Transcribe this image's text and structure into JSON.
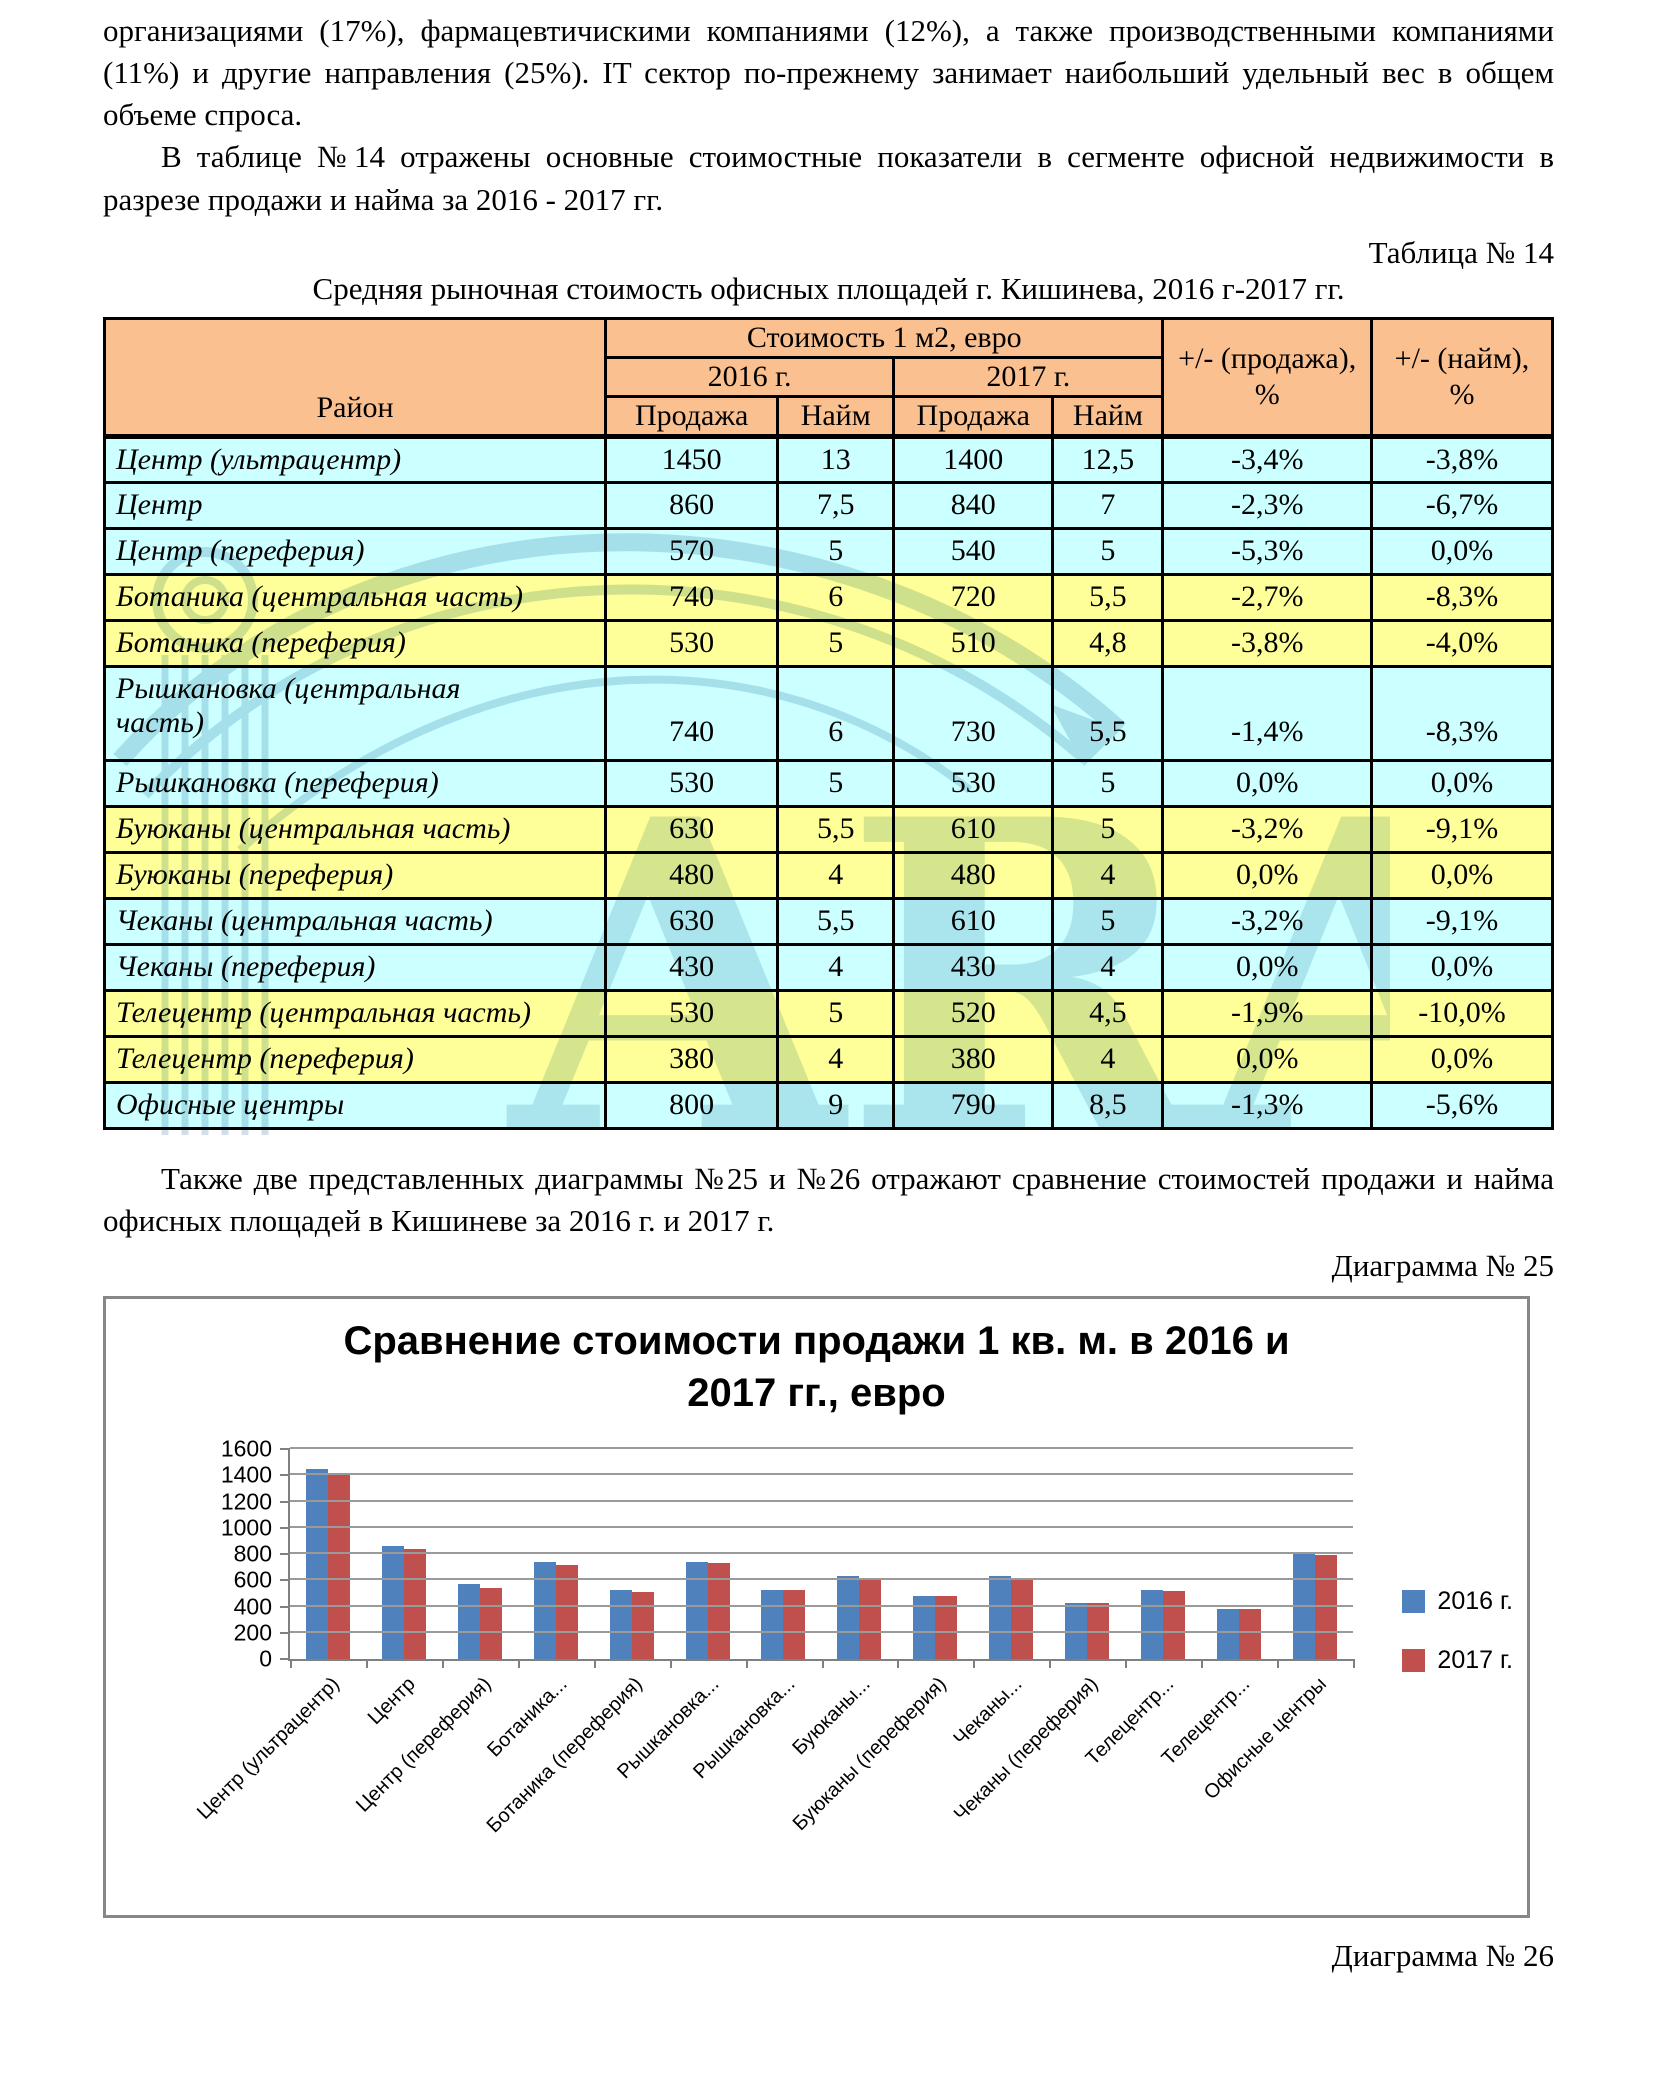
{
  "page": {
    "paragraph1": "организациями (17%), фармацевтичискими компаниями (12%), а также производственными компаниями (11%) и другие направления (25%). IT сектор по-прежнему занимает наибольший удельный вес в общем объеме спроса.",
    "paragraph2": "В таблице №14 отражены основные стоимостные показатели в сегменте офисной недвижимости в разрезе продажи и найма за 2016 - 2017 гг.",
    "table_caption": "Таблица № 14",
    "table_title": "Средняя рыночная стоимость офисных площадей г. Кишинева, 2016 г-2017 гг.",
    "paragraph3": "Также две представленных диаграммы №25 и №26 отражают сравнение стоимостей продажи и найма офисных площадей в Кишиневе за 2016 г. и 2017 г.",
    "diagram25_caption": "Диаграмма № 25",
    "diagram26_caption": "Диаграмма № 26"
  },
  "watermark": {
    "text": "ARA",
    "color": "#5E97B8"
  },
  "table": {
    "headers": {
      "district": "Район",
      "cost_group": "Стоимость 1 м2, евро",
      "year2016": "2016 г.",
      "year2017": "2017 г.",
      "sale": "Продажа",
      "rent": "Найм",
      "delta_sale": "+/- (продажа), %",
      "delta_rent": "+/- (найм), %"
    },
    "rows": [
      {
        "district": "Центр (ультрацентр)",
        "sale2016": "1450",
        "rent2016": "13",
        "sale2017": "1400",
        "rent2017": "12,5",
        "delta_sale": "-3,4%",
        "delta_rent": "-3,8%",
        "color": "cyan",
        "tall": false
      },
      {
        "district": "Центр",
        "sale2016": "860",
        "rent2016": "7,5",
        "sale2017": "840",
        "rent2017": "7",
        "delta_sale": "-2,3%",
        "delta_rent": "-6,7%",
        "color": "cyan",
        "tall": false
      },
      {
        "district": "Центр (переферия)",
        "sale2016": "570",
        "rent2016": "5",
        "sale2017": "540",
        "rent2017": "5",
        "delta_sale": "-5,3%",
        "delta_rent": "0,0%",
        "color": "cyan",
        "tall": false
      },
      {
        "district": "Ботаника (центральная часть)",
        "sale2016": "740",
        "rent2016": "6",
        "sale2017": "720",
        "rent2017": "5,5",
        "delta_sale": "-2,7%",
        "delta_rent": "-8,3%",
        "color": "yellow",
        "tall": false
      },
      {
        "district": "Ботаника (переферия)",
        "sale2016": "530",
        "rent2016": "5",
        "sale2017": "510",
        "rent2017": "4,8",
        "delta_sale": "-3,8%",
        "delta_rent": "-4,0%",
        "color": "yellow",
        "tall": false
      },
      {
        "district": "Рышкановка (центральная\nчасть)",
        "sale2016": "740",
        "rent2016": "6",
        "sale2017": "730",
        "rent2017": "5,5",
        "delta_sale": "-1,4%",
        "delta_rent": "-8,3%",
        "color": "cyan",
        "tall": true
      },
      {
        "district": "Рышкановка (переферия)",
        "sale2016": "530",
        "rent2016": "5",
        "sale2017": "530",
        "rent2017": "5",
        "delta_sale": "0,0%",
        "delta_rent": "0,0%",
        "color": "cyan",
        "tall": false
      },
      {
        "district": "Буюканы (центральная часть)",
        "sale2016": "630",
        "rent2016": "5,5",
        "sale2017": "610",
        "rent2017": "5",
        "delta_sale": "-3,2%",
        "delta_rent": "-9,1%",
        "color": "yellow",
        "tall": false
      },
      {
        "district": "Буюканы (переферия)",
        "sale2016": "480",
        "rent2016": "4",
        "sale2017": "480",
        "rent2017": "4",
        "delta_sale": "0,0%",
        "delta_rent": "0,0%",
        "color": "yellow",
        "tall": false
      },
      {
        "district": "Чеканы (центральная часть)",
        "sale2016": "630",
        "rent2016": "5,5",
        "sale2017": "610",
        "rent2017": "5",
        "delta_sale": "-3,2%",
        "delta_rent": "-9,1%",
        "color": "cyan",
        "tall": false
      },
      {
        "district": "Чеканы (переферия)",
        "sale2016": "430",
        "rent2016": "4",
        "sale2017": "430",
        "rent2017": "4",
        "delta_sale": "0,0%",
        "delta_rent": "0,0%",
        "color": "cyan",
        "tall": false
      },
      {
        "district": "Телецентр (центральная часть)",
        "sale2016": "530",
        "rent2016": "5",
        "sale2017": "520",
        "rent2017": "4,5",
        "delta_sale": "-1,9%",
        "delta_rent": "-10,0%",
        "color": "yellow",
        "tall": false
      },
      {
        "district": "Телецентр (переферия)",
        "sale2016": "380",
        "rent2016": "4",
        "sale2017": "380",
        "rent2017": "4",
        "delta_sale": "0,0%",
        "delta_rent": "0,0%",
        "color": "yellow",
        "tall": false
      },
      {
        "district": "Офисные центры",
        "sale2016": "800",
        "rent2016": "9",
        "sale2017": "790",
        "rent2017": "8,5",
        "delta_sale": "-1,3%",
        "delta_rent": "-5,6%",
        "color": "cyan",
        "tall": false
      }
    ]
  },
  "chart_data": {
    "type": "bar",
    "title": "Сравнение стоимости продажи 1 кв. м. в 2016 и 2017 гг., евро",
    "categories": [
      "Центр (ультрацентр)",
      "Центр",
      "Центр (переферия)",
      "Ботаника...",
      "Ботаника (переферия)",
      "Рышкановка...",
      "Рышкановка...",
      "Буюканы...",
      "Буюканы (переферия)",
      "Чеканы...",
      "Чеканы (переферия)",
      "Телецентр...",
      "Телецентр...",
      "Офисные центры"
    ],
    "series": [
      {
        "name": "2016 г.",
        "color": "#4F81BD",
        "values": [
          1450,
          860,
          570,
          740,
          530,
          740,
          530,
          630,
          480,
          630,
          430,
          530,
          380,
          800
        ]
      },
      {
        "name": "2017 г.",
        "color": "#C0504D",
        "values": [
          1400,
          840,
          540,
          720,
          510,
          730,
          530,
          610,
          480,
          610,
          430,
          520,
          380,
          790
        ]
      }
    ],
    "xlabel": "",
    "ylabel": "",
    "ylim": [
      0,
      1600
    ],
    "ytick_step": 200,
    "grid": true,
    "legend_position": "right"
  },
  "colors": {
    "table_header_bg": "#FAC090",
    "row_cyan": "#CCFFFF",
    "row_yellow": "#FFFF99",
    "bar_2016": "#4F81BD",
    "bar_2017": "#C0504D",
    "chart_border": "#878787",
    "gridline": "#9A9A9A"
  }
}
